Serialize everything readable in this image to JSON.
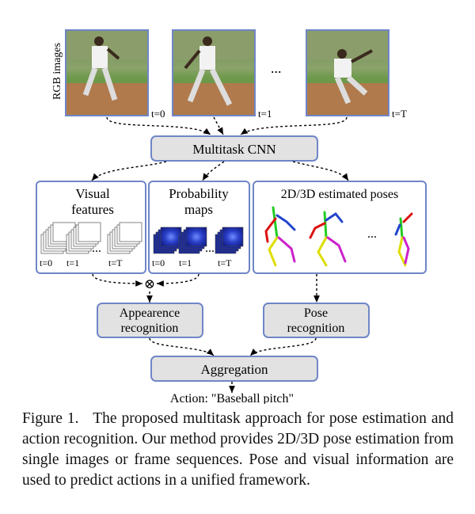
{
  "diagram": {
    "rgb_label": "RGB images",
    "frame_labels": [
      "t=0",
      "t=1",
      "t=T"
    ],
    "frames_ellipsis": "...",
    "cnn_label": "Multitask CNN",
    "visual_features": {
      "title_line1": "Visual",
      "title_line2": "features",
      "labels": [
        "t=0",
        "t=1",
        "t=T"
      ],
      "ellipsis": "..."
    },
    "probability_maps": {
      "title_line1": "Probability",
      "title_line2": "maps",
      "labels": [
        "t=0",
        "t=1",
        "t=T"
      ],
      "ellipsis": "..."
    },
    "poses": {
      "title": "2D/3D estimated poses",
      "ellipsis": "..."
    },
    "combine_symbol": "⊗",
    "appearance": {
      "line1": "Appearence",
      "line2": "recognition"
    },
    "pose_recognition": {
      "line1": "Pose",
      "line2": "recognition"
    },
    "aggregation_label": "Aggregation",
    "action_label": "Action: \"Baseball pitch\"",
    "colors": {
      "box_gray": "#e2e2e2",
      "box_border": "#6f86c7",
      "pose_green": "#22cc22",
      "pose_red": "#dd1111",
      "pose_blue": "#2244cc",
      "pose_yellow": "#dddd00",
      "pose_magenta": "#cc22cc",
      "heatmap_blue": "#1a2a9c"
    }
  },
  "caption": {
    "label": "Figure 1.",
    "text": "The proposed multitask approach for pose estimation and action recognition. Our method provides 2D/3D pose estimation from single images or frame sequences. Pose and visual information are used to predict actions in a unified framework."
  }
}
